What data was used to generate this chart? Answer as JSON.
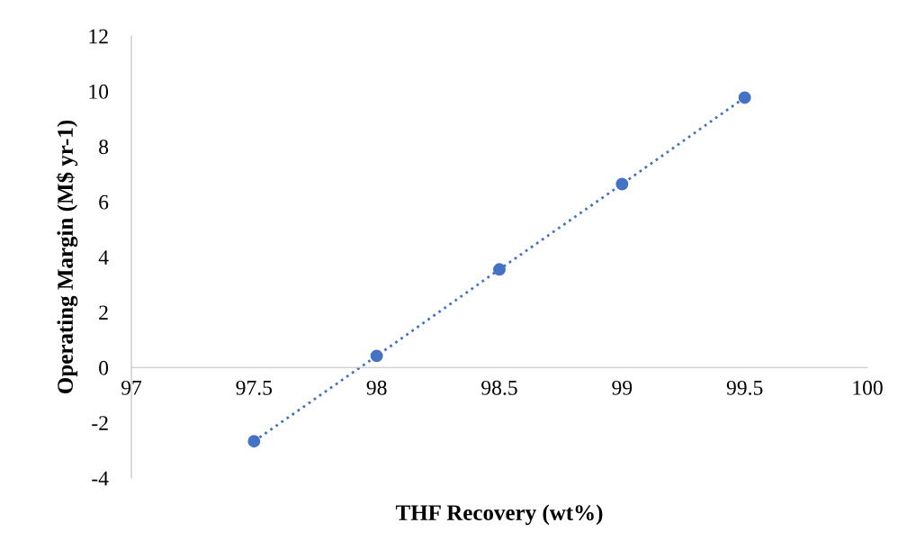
{
  "chart_data": {
    "type": "line",
    "xlabel": "THF Recovery (wt%)",
    "ylabel": "Operating Margin (M$ yr-1)",
    "x": [
      97.5,
      98,
      98.5,
      99,
      99.5
    ],
    "series": [
      {
        "color": "#4472c4",
        "values": [
          -2.67,
          0.42,
          3.55,
          6.64,
          9.77
        ]
      }
    ],
    "xlim": [
      97,
      100
    ],
    "xticks": [
      97,
      97.5,
      98,
      98.5,
      99,
      99.5,
      100
    ],
    "ylim": [
      -4,
      12
    ],
    "yticks": [
      {
        "value": -4,
        "label": "-4"
      },
      {
        "value": -2,
        "label": "-2"
      },
      0,
      2,
      4,
      6,
      8,
      10,
      12
    ],
    "grid": false,
    "marker": "circle",
    "line_style": "dotted"
  }
}
